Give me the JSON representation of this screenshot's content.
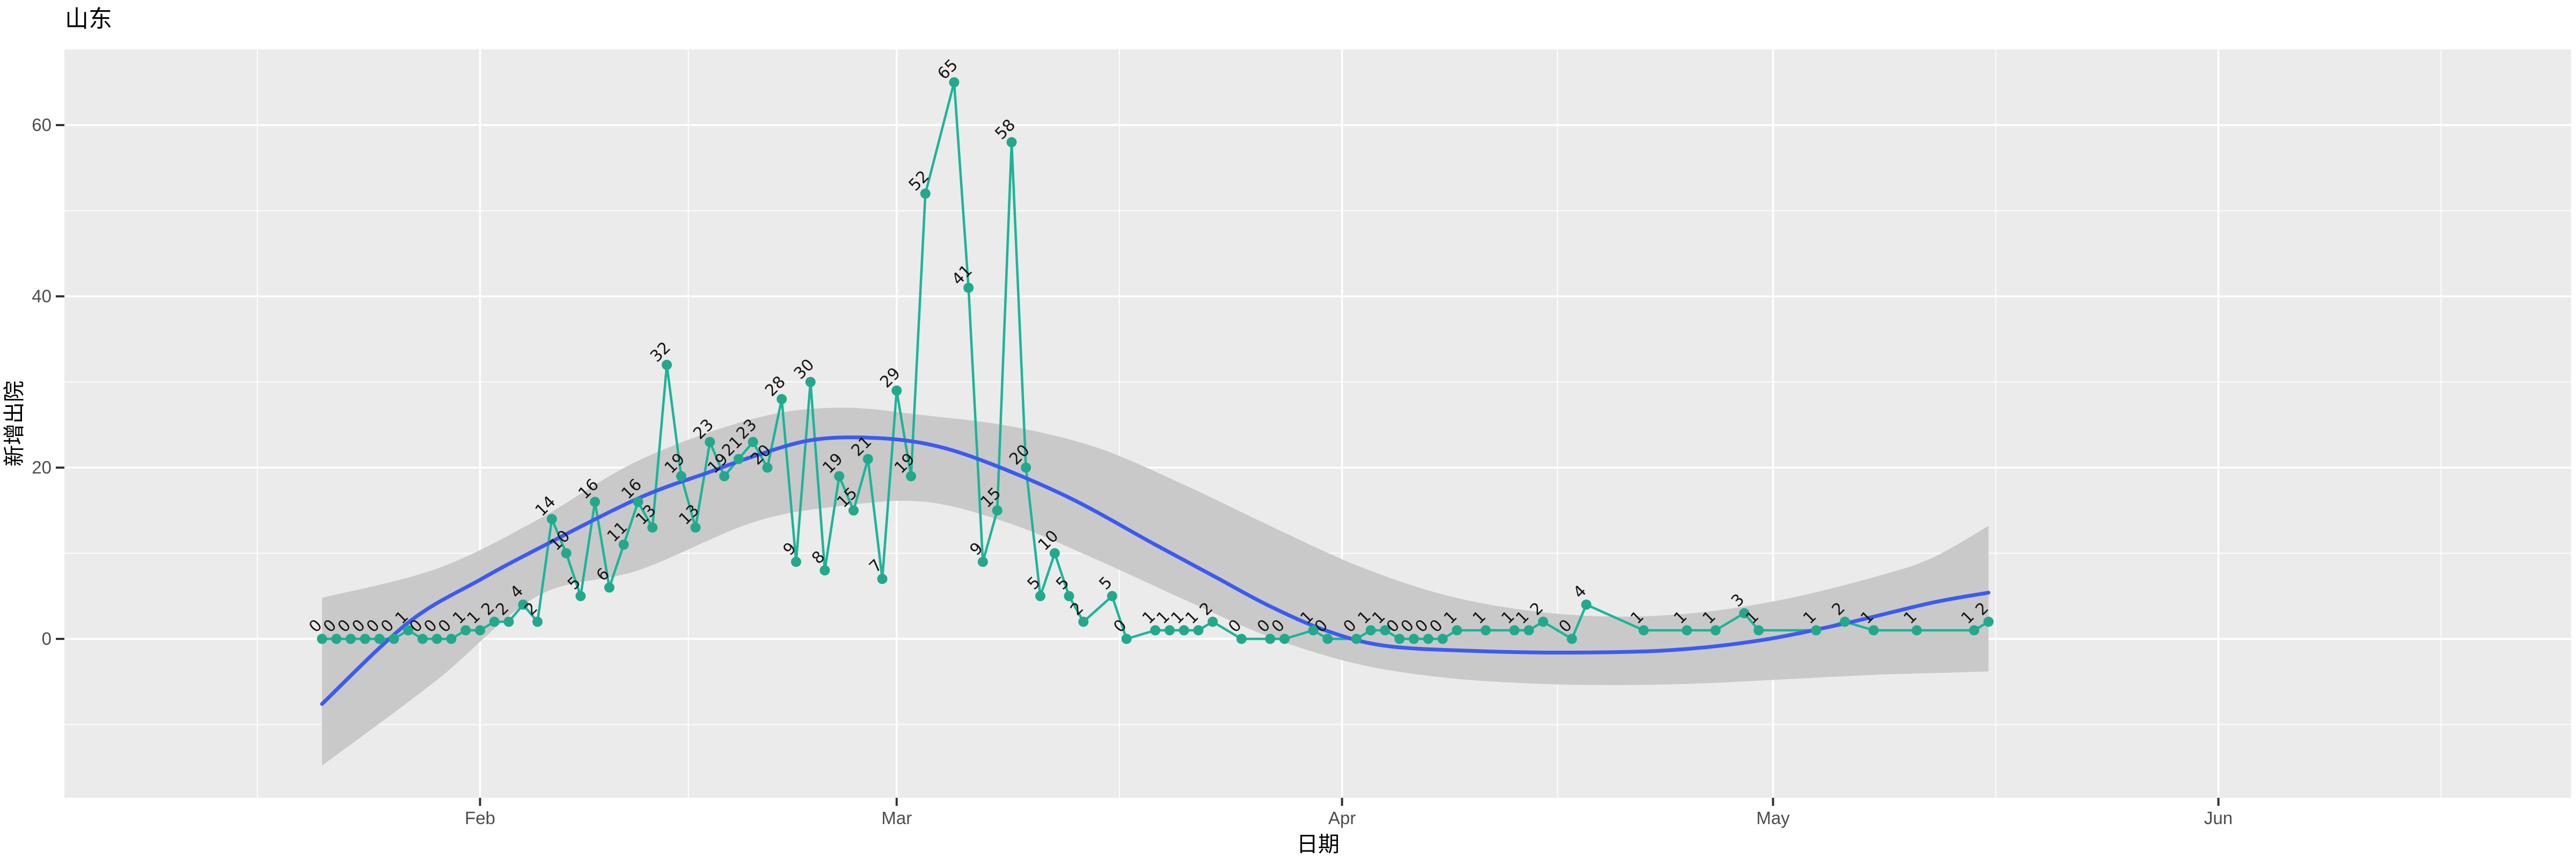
{
  "title": "山东",
  "x_axis": {
    "label": "日期",
    "tick_labels": [
      "Feb",
      "Mar",
      "Apr",
      "May",
      "Jun"
    ],
    "tick_days": [
      11,
      40,
      71,
      101,
      132
    ],
    "minor_tick_days": [
      -4.5,
      25.5,
      55.5,
      86,
      116.5,
      147.5
    ]
  },
  "y_axis": {
    "label": "新增出院",
    "tick_values": [
      0,
      20,
      40,
      60
    ],
    "minor_tick_values": [
      -10,
      10,
      30,
      50
    ]
  },
  "colors": {
    "panel_bg": "#EBEBEB",
    "grid": "#FFFFFF",
    "series_line": "#1CB499",
    "series_point": "#23A88C",
    "point_label": "#141414",
    "smooth_line": "#3D5AF1",
    "ci_band": "#C9C9C9",
    "tick_text": "#4D4D4D",
    "tick_mark": "#333333"
  },
  "chart_data": {
    "type": "line",
    "title": "山东",
    "xlabel": "日期",
    "ylabel": "新增出院",
    "x_tick_labels": [
      "Feb",
      "Mar",
      "Apr",
      "May",
      "Jun"
    ],
    "x_unit": "days from first observation (x ticks = month starts at days 11,40,71,101,132)",
    "ylim": [
      -19,
      69
    ],
    "grid": "on",
    "legend": "none",
    "point_labels": "each point labeled with its value, rotated 45 degrees",
    "series": [
      {
        "name": "新增出院",
        "points": [
          [
            0,
            0
          ],
          [
            1,
            0
          ],
          [
            2,
            0
          ],
          [
            3,
            0
          ],
          [
            4,
            0
          ],
          [
            5,
            0
          ],
          [
            6,
            1
          ],
          [
            7,
            0
          ],
          [
            8,
            0
          ],
          [
            9,
            0
          ],
          [
            10,
            1
          ],
          [
            11,
            1
          ],
          [
            12,
            2
          ],
          [
            13,
            2
          ],
          [
            14,
            4
          ],
          [
            15,
            2
          ],
          [
            16,
            14
          ],
          [
            17,
            10
          ],
          [
            18,
            5
          ],
          [
            19,
            16
          ],
          [
            20,
            6
          ],
          [
            21,
            11
          ],
          [
            22,
            16
          ],
          [
            23,
            13
          ],
          [
            24,
            32
          ],
          [
            25,
            19
          ],
          [
            26,
            13
          ],
          [
            27,
            23
          ],
          [
            28,
            19
          ],
          [
            29,
            21
          ],
          [
            30,
            23
          ],
          [
            31,
            20
          ],
          [
            32,
            28
          ],
          [
            33,
            9
          ],
          [
            34,
            30
          ],
          [
            35,
            8
          ],
          [
            36,
            19
          ],
          [
            37,
            15
          ],
          [
            38,
            21
          ],
          [
            39,
            7
          ],
          [
            40,
            29
          ],
          [
            41,
            19
          ],
          [
            42,
            52
          ],
          [
            44,
            65
          ],
          [
            45,
            41
          ],
          [
            46,
            9
          ],
          [
            47,
            15
          ],
          [
            48,
            58
          ],
          [
            49,
            20
          ],
          [
            50,
            5
          ],
          [
            51,
            10
          ],
          [
            52,
            5
          ],
          [
            53,
            2
          ],
          [
            55,
            5
          ],
          [
            56,
            0
          ],
          [
            58,
            1
          ],
          [
            59,
            1
          ],
          [
            60,
            1
          ],
          [
            61,
            1
          ],
          [
            62,
            2
          ],
          [
            64,
            0
          ],
          [
            66,
            0
          ],
          [
            67,
            0
          ],
          [
            69,
            1
          ],
          [
            70,
            0
          ],
          [
            72,
            0
          ],
          [
            73,
            1
          ],
          [
            74,
            1
          ],
          [
            75,
            0
          ],
          [
            76,
            0
          ],
          [
            77,
            0
          ],
          [
            78,
            0
          ],
          [
            79,
            1
          ],
          [
            81,
            1
          ],
          [
            83,
            1
          ],
          [
            84,
            1
          ],
          [
            85,
            2
          ],
          [
            87,
            0
          ],
          [
            88,
            4
          ],
          [
            92,
            1
          ],
          [
            95,
            1
          ],
          [
            97,
            1
          ],
          [
            99,
            3
          ],
          [
            100,
            1
          ],
          [
            104,
            1
          ],
          [
            106,
            2
          ],
          [
            108,
            1
          ],
          [
            111,
            1
          ],
          [
            115,
            1
          ],
          [
            116,
            2
          ]
        ]
      }
    ],
    "smooth": {
      "name": "loess fit with confidence band",
      "line": [
        [
          0,
          -7.6
        ],
        [
          6,
          1.9
        ],
        [
          11,
          6.9
        ],
        [
          15,
          10.5
        ],
        [
          22,
          16.4
        ],
        [
          27,
          19.5
        ],
        [
          30,
          21.3
        ],
        [
          34,
          23.2
        ],
        [
          38,
          23.5
        ],
        [
          42,
          22.8
        ],
        [
          46,
          20.8
        ],
        [
          52,
          16.5
        ],
        [
          58,
          11.0
        ],
        [
          62,
          7.4
        ],
        [
          66,
          3.8
        ],
        [
          70,
          0.9
        ],
        [
          74,
          -0.8
        ],
        [
          80,
          -1.4
        ],
        [
          87,
          -1.6
        ],
        [
          94,
          -1.3
        ],
        [
          100,
          -0.2
        ],
        [
          106,
          1.8
        ],
        [
          112,
          4.2
        ],
        [
          116,
          5.4
        ]
      ],
      "band_top": [
        [
          0,
          4.8
        ],
        [
          8,
          8.2
        ],
        [
          15,
          13.9
        ],
        [
          22,
          20.8
        ],
        [
          30,
          25.7
        ],
        [
          36,
          27.0
        ],
        [
          42,
          26.1
        ],
        [
          48,
          24.8
        ],
        [
          54,
          22.3
        ],
        [
          60,
          18.0
        ],
        [
          66,
          13.2
        ],
        [
          72,
          8.6
        ],
        [
          78,
          5.2
        ],
        [
          84,
          3.3
        ],
        [
          90,
          2.6
        ],
        [
          96,
          3.1
        ],
        [
          102,
          4.7
        ],
        [
          108,
          7.2
        ],
        [
          112,
          9.4
        ],
        [
          116,
          13.2
        ]
      ],
      "band_bottom": [
        [
          0,
          -14.8
        ],
        [
          8,
          -4.8
        ],
        [
          15,
          5.0
        ],
        [
          22,
          8.0
        ],
        [
          30,
          13.6
        ],
        [
          36,
          15.5
        ],
        [
          42,
          16.0
        ],
        [
          48,
          13.4
        ],
        [
          54,
          9.2
        ],
        [
          60,
          4.6
        ],
        [
          66,
          0.2
        ],
        [
          72,
          -2.9
        ],
        [
          78,
          -4.5
        ],
        [
          84,
          -5.2
        ],
        [
          90,
          -5.4
        ],
        [
          96,
          -5.2
        ],
        [
          102,
          -4.7
        ],
        [
          108,
          -4.2
        ],
        [
          112,
          -4.0
        ],
        [
          116,
          -3.8
        ]
      ]
    }
  }
}
